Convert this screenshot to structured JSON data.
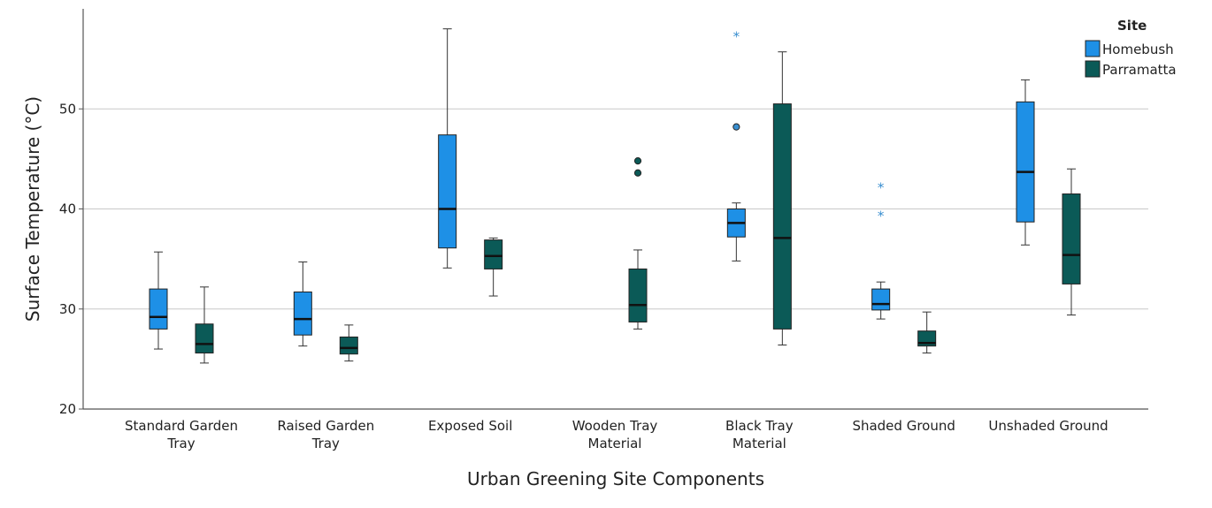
{
  "chart_data": {
    "type": "boxplot",
    "xlabel": "Urban Greening Site Components",
    "ylabel": "Surface Temperature (°C)",
    "ylim": [
      20,
      60
    ],
    "yticks": [
      20,
      30,
      40,
      50
    ],
    "grid": true,
    "legend": {
      "title": "Site",
      "position": "top-right"
    },
    "categories": [
      [
        "Standard Garden",
        "Tray"
      ],
      [
        "Raised Garden",
        "Tray"
      ],
      [
        "Exposed Soil"
      ],
      [
        "Wooden Tray",
        "Material"
      ],
      [
        "Black Tray",
        "Material"
      ],
      [
        "Shaded Ground"
      ],
      [
        "Unshaded Ground"
      ]
    ],
    "series": [
      {
        "name": "Homebush",
        "color": "#1e90e6",
        "outlier_color": "#3a8fd0",
        "boxes": [
          {
            "min": 26.0,
            "q1": 28.0,
            "median": 29.2,
            "q3": 32.0,
            "max": 35.7,
            "outliers": [],
            "extremes": []
          },
          {
            "min": 26.3,
            "q1": 27.4,
            "median": 29.0,
            "q3": 31.7,
            "max": 34.7,
            "outliers": [],
            "extremes": []
          },
          {
            "min": 34.1,
            "q1": 36.1,
            "median": 40.0,
            "q3": 47.4,
            "max": 58.0,
            "outliers": [],
            "extremes": []
          },
          null,
          {
            "min": 34.8,
            "q1": 37.2,
            "median": 38.6,
            "q3": 40.0,
            "max": 40.6,
            "outliers": [
              48.2
            ],
            "extremes": [
              57.3
            ]
          },
          {
            "min": 29.0,
            "q1": 29.9,
            "median": 30.5,
            "q3": 32.0,
            "max": 32.7,
            "outliers": [],
            "extremes": [
              42.2,
              39.4
            ]
          },
          {
            "min": 36.4,
            "q1": 38.7,
            "median": 43.7,
            "q3": 50.7,
            "max": 52.9,
            "outliers": [],
            "extremes": []
          }
        ]
      },
      {
        "name": "Parramatta",
        "color": "#0b5a57",
        "outlier_color": "#0b5a57",
        "boxes": [
          {
            "min": 24.6,
            "q1": 25.6,
            "median": 26.5,
            "q3": 28.5,
            "max": 32.2,
            "outliers": [],
            "extremes": []
          },
          {
            "min": 24.8,
            "q1": 25.5,
            "median": 26.1,
            "q3": 27.2,
            "max": 28.4,
            "outliers": [],
            "extremes": []
          },
          {
            "min": 31.3,
            "q1": 34.0,
            "median": 35.3,
            "q3": 36.9,
            "max": 37.1,
            "outliers": [],
            "extremes": []
          },
          {
            "min": 28.0,
            "q1": 28.7,
            "median": 30.4,
            "q3": 34.0,
            "max": 35.9,
            "outliers": [
              44.8,
              43.6
            ],
            "extremes": []
          },
          {
            "min": 26.4,
            "q1": 28.0,
            "median": 37.1,
            "q3": 50.5,
            "max": 55.7,
            "outliers": [],
            "extremes": []
          },
          {
            "min": 25.6,
            "q1": 26.3,
            "median": 26.6,
            "q3": 27.8,
            "max": 29.7,
            "outliers": [],
            "extremes": []
          },
          {
            "min": 29.4,
            "q1": 32.5,
            "median": 35.4,
            "q3": 41.5,
            "max": 44.0,
            "outliers": [],
            "extremes": []
          }
        ]
      }
    ]
  }
}
